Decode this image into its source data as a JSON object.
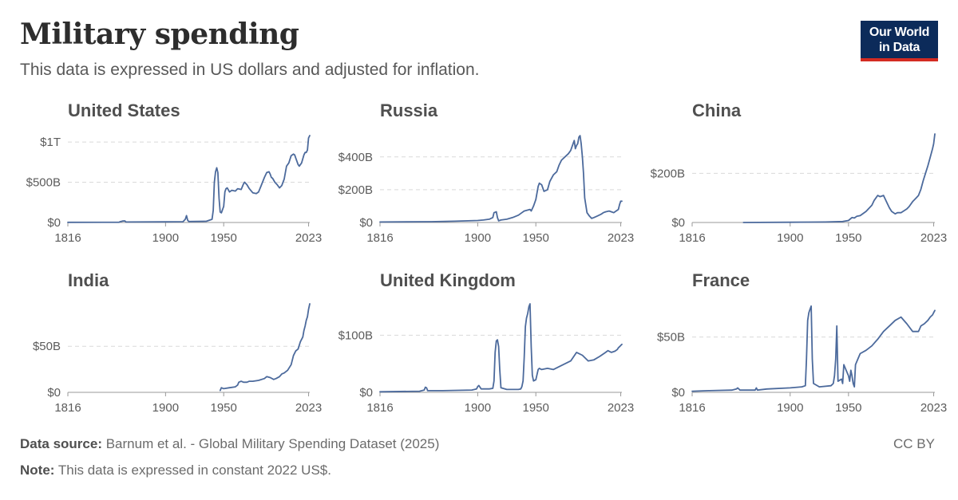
{
  "header": {
    "title": "Military spending",
    "subtitle": "This data is expressed in US dollars and adjusted for inflation.",
    "logo_line1": "Our World",
    "logo_line2": "in Data"
  },
  "footer": {
    "source_label": "Data source:",
    "source_text": "Barnum et al. - Global Military Spending Dataset (2025)",
    "note_label": "Note:",
    "note_text": "This data is expressed in constant 2022 US$.",
    "license": "CC BY"
  },
  "colors": {
    "line": "#4c6a9c",
    "logo_bg": "#0c2b5a",
    "logo_accent": "#d42b22"
  },
  "chart_data": [
    {
      "type": "line",
      "title": "United States",
      "xlim": [
        1816,
        2024
      ],
      "xticks": [
        1816,
        1900,
        1950,
        2023
      ],
      "ylim": [
        0,
        1100
      ],
      "yticks": [
        0,
        500,
        1000
      ],
      "yticklabels": [
        "$0",
        "$500B",
        "$1T"
      ],
      "x": [
        1816,
        1860,
        1861,
        1863,
        1865,
        1866,
        1900,
        1915,
        1917,
        1918,
        1919,
        1920,
        1935,
        1940,
        1941,
        1942,
        1943,
        1944,
        1945,
        1946,
        1947,
        1948,
        1950,
        1951,
        1952,
        1953,
        1955,
        1957,
        1960,
        1962,
        1965,
        1967,
        1968,
        1970,
        1972,
        1975,
        1978,
        1980,
        1982,
        1985,
        1987,
        1989,
        1990,
        1991,
        1992,
        1994,
        1996,
        1998,
        2000,
        2002,
        2004,
        2006,
        2008,
        2010,
        2011,
        2012,
        2014,
        2015,
        2017,
        2019,
        2020,
        2021,
        2022,
        2023,
        2024
      ],
      "values": [
        2,
        3,
        10,
        18,
        20,
        6,
        8,
        10,
        40,
        85,
        30,
        12,
        15,
        40,
        150,
        500,
        630,
        680,
        620,
        300,
        130,
        120,
        200,
        380,
        420,
        430,
        380,
        400,
        390,
        420,
        410,
        480,
        500,
        470,
        420,
        370,
        360,
        380,
        450,
        560,
        620,
        630,
        600,
        560,
        550,
        500,
        470,
        430,
        460,
        540,
        700,
        740,
        830,
        850,
        840,
        800,
        720,
        700,
        740,
        840,
        870,
        870,
        900,
        1050,
        1080
      ]
    },
    {
      "type": "line",
      "title": "Russia",
      "xlim": [
        1816,
        2024
      ],
      "xticks": [
        1816,
        1900,
        1950,
        2023
      ],
      "ylim": [
        0,
        540
      ],
      "yticks": [
        0,
        200,
        400
      ],
      "yticklabels": [
        "$0",
        "$200B",
        "$400B"
      ],
      "x": [
        1816,
        1860,
        1880,
        1900,
        1905,
        1910,
        1913,
        1914,
        1916,
        1917,
        1918,
        1920,
        1925,
        1930,
        1935,
        1938,
        1940,
        1945,
        1946,
        1948,
        1950,
        1952,
        1953,
        1955,
        1957,
        1960,
        1962,
        1965,
        1968,
        1970,
        1972,
        1975,
        1978,
        1980,
        1982,
        1983,
        1984,
        1985,
        1986,
        1987,
        1988,
        1989,
        1990,
        1991,
        1992,
        1994,
        1996,
        1998,
        2000,
        2003,
        2006,
        2008,
        2010,
        2013,
        2015,
        2017,
        2019,
        2020,
        2021,
        2022,
        2023,
        2024
      ],
      "values": [
        3,
        5,
        8,
        12,
        15,
        20,
        30,
        60,
        65,
        30,
        10,
        15,
        20,
        30,
        45,
        60,
        70,
        80,
        70,
        100,
        140,
        220,
        240,
        230,
        190,
        200,
        250,
        290,
        310,
        350,
        380,
        400,
        420,
        440,
        480,
        500,
        450,
        470,
        480,
        520,
        530,
        480,
        400,
        300,
        150,
        60,
        40,
        25,
        30,
        40,
        50,
        60,
        65,
        70,
        65,
        60,
        70,
        75,
        80,
        110,
        130,
        130
      ]
    },
    {
      "type": "line",
      "title": "China",
      "xlim": [
        1816,
        2024
      ],
      "xticks": [
        1816,
        1900,
        1950,
        2023
      ],
      "ylim": [
        0,
        360
      ],
      "yticks": [
        0,
        200
      ],
      "yticklabels": [
        "$0",
        "$200B"
      ],
      "x": [
        1860,
        1900,
        1930,
        1945,
        1950,
        1953,
        1955,
        1957,
        1960,
        1965,
        1970,
        1972,
        1975,
        1977,
        1980,
        1982,
        1985,
        1987,
        1990,
        1992,
        1995,
        2000,
        2002,
        2005,
        2008,
        2010,
        2012,
        2014,
        2016,
        2018,
        2020,
        2022,
        2023,
        2024
      ],
      "values": [
        0,
        1,
        2,
        4,
        8,
        20,
        18,
        25,
        28,
        45,
        70,
        90,
        110,
        105,
        110,
        90,
        60,
        45,
        35,
        40,
        40,
        55,
        65,
        85,
        100,
        110,
        135,
        170,
        200,
        230,
        265,
        300,
        320,
        360
      ]
    },
    {
      "type": "line",
      "title": "India",
      "xlim": [
        1816,
        2024
      ],
      "xticks": [
        1816,
        1900,
        1950,
        2023
      ],
      "ylim": [
        0,
        96
      ],
      "yticks": [
        0,
        50
      ],
      "yticklabels": [
        "$0",
        "$50B"
      ],
      "x": [
        1947,
        1948,
        1950,
        1955,
        1960,
        1962,
        1963,
        1965,
        1967,
        1970,
        1972,
        1975,
        1980,
        1985,
        1987,
        1990,
        1993,
        1995,
        1998,
        2000,
        2002,
        2005,
        2008,
        2010,
        2012,
        2014,
        2016,
        2018,
        2019,
        2020,
        2021,
        2022,
        2023,
        2024
      ],
      "values": [
        2,
        5,
        4,
        5,
        6,
        8,
        11,
        12,
        11,
        11,
        12,
        12,
        13,
        15,
        17,
        16,
        14,
        15,
        17,
        20,
        21,
        24,
        30,
        40,
        45,
        47,
        55,
        60,
        67,
        72,
        78,
        82,
        90,
        96
      ]
    },
    {
      "type": "line",
      "title": "United Kingdom",
      "xlim": [
        1816,
        2024
      ],
      "xticks": [
        1816,
        1900,
        1950,
        2023
      ],
      "ylim": [
        0,
        155
      ],
      "yticks": [
        0,
        100
      ],
      "yticklabels": [
        "$0",
        "$100B"
      ],
      "x": [
        1816,
        1850,
        1854,
        1855,
        1856,
        1857,
        1870,
        1895,
        1899,
        1900,
        1901,
        1903,
        1910,
        1913,
        1914,
        1915,
        1916,
        1917,
        1918,
        1919,
        1920,
        1925,
        1935,
        1937,
        1938,
        1939,
        1940,
        1941,
        1942,
        1943,
        1944,
        1945,
        1946,
        1947,
        1948,
        1950,
        1952,
        1953,
        1955,
        1960,
        1965,
        1970,
        1975,
        1980,
        1985,
        1990,
        1995,
        2000,
        2005,
        2010,
        2012,
        2015,
        2018,
        2020,
        2021,
        2022,
        2023,
        2024
      ],
      "values": [
        1,
        2,
        4,
        9,
        8,
        3,
        3,
        4,
        6,
        10,
        12,
        6,
        6,
        7,
        20,
        70,
        90,
        92,
        80,
        40,
        8,
        5,
        5,
        6,
        10,
        20,
        60,
        115,
        130,
        138,
        150,
        155,
        80,
        30,
        20,
        22,
        40,
        42,
        40,
        42,
        40,
        45,
        50,
        55,
        70,
        65,
        55,
        57,
        63,
        70,
        73,
        70,
        72,
        75,
        78,
        80,
        82,
        84
      ]
    },
    {
      "type": "line",
      "title": "France",
      "xlim": [
        1816,
        2024
      ],
      "xticks": [
        1816,
        1900,
        1950,
        2023
      ],
      "ylim": [
        0,
        80
      ],
      "yticks": [
        0,
        50
      ],
      "yticklabels": [
        "$0",
        "$50B"
      ],
      "x": [
        1816,
        1830,
        1850,
        1854,
        1855,
        1856,
        1857,
        1870,
        1871,
        1872,
        1880,
        1900,
        1910,
        1913,
        1914,
        1915,
        1916,
        1917,
        1918,
        1919,
        1920,
        1925,
        1935,
        1937,
        1938,
        1939,
        1940,
        1941,
        1944,
        1945,
        1946,
        1948,
        1950,
        1951,
        1952,
        1953,
        1954,
        1955,
        1956,
        1958,
        1960,
        1965,
        1970,
        1975,
        1980,
        1985,
        1990,
        1995,
        2000,
        2005,
        2010,
        2012,
        2015,
        2018,
        2020,
        2022,
        2023,
        2024
      ],
      "values": [
        1,
        1.5,
        2,
        3,
        4,
        3,
        2,
        2,
        4,
        2,
        3,
        4,
        5,
        6,
        30,
        65,
        72,
        75,
        78,
        30,
        8,
        5,
        6,
        8,
        15,
        30,
        60,
        10,
        12,
        8,
        25,
        20,
        15,
        10,
        20,
        15,
        8,
        5,
        25,
        30,
        35,
        38,
        42,
        48,
        55,
        60,
        65,
        68,
        62,
        55,
        55,
        60,
        62,
        65,
        68,
        70,
        72,
        74
      ]
    }
  ]
}
